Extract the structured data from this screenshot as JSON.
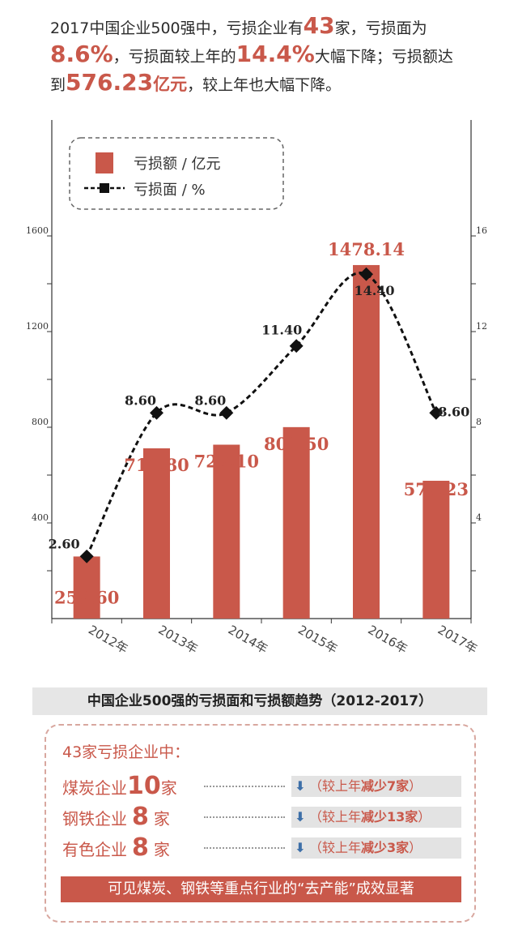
{
  "headline": {
    "l1a": "2017中国企业500强中，亏损企业有",
    "l1b": "43",
    "l1c": "家，亏损面为",
    "l2a": "8.6%",
    "l2b": "，亏损面较上年的",
    "l2c": "14.4%",
    "l2d": "大幅下降；亏损额达",
    "l3a": "到",
    "l3b": "576.23",
    "l3c": "亿元",
    "l3d": "，较上年也大幅下降。"
  },
  "chart_data": {
    "type": "bar+line",
    "categories": [
      "2012年",
      "2013年",
      "2014年",
      "2015年",
      "2016年",
      "2017年"
    ],
    "series": [
      {
        "name": "亏损额 / 亿元",
        "type": "bar",
        "values": [
          259.6,
          711.8,
          727.1,
          800.5,
          1478.14,
          576.23
        ],
        "labels": [
          "259.60",
          "711.80",
          "727.10",
          "800.50",
          "1478.14",
          "576.23"
        ]
      },
      {
        "name": "亏损面 / %",
        "type": "line",
        "values": [
          2.6,
          8.6,
          8.6,
          11.4,
          14.4,
          8.6
        ],
        "labels": [
          "2.60",
          "8.60",
          "8.60",
          "11.40",
          "14.40",
          "8.60"
        ]
      }
    ],
    "y_left": {
      "ticks": [
        "400",
        "800",
        "1200",
        "1600"
      ],
      "range": [
        0,
        1600
      ]
    },
    "y_right": {
      "ticks": [
        "4",
        "8",
        "12",
        "16"
      ],
      "range": [
        0,
        16
      ]
    },
    "legend": [
      "亏损额 / 亿元",
      "亏损面 / %"
    ],
    "legend_position": "top-left",
    "colors": {
      "bar": "#c9584a",
      "line": "#111111"
    }
  },
  "subtitle": "中国企业500强的亏损面和亏损额趋势（2012-2017）",
  "box": {
    "heading": "43家亏损企业中：",
    "rows": [
      {
        "name": "煤炭企业",
        "count": "10",
        "unit": "家",
        "arrow": "down-arrow-icon",
        "note_pre": "（较上年",
        "note_bold": "减少7家",
        "note_post": "）"
      },
      {
        "name": "钢铁企业",
        "count": "8",
        "unit": "家",
        "arrow": "down-arrow-icon",
        "note_pre": "（较上年",
        "note_bold": "减少13家",
        "note_post": "）"
      },
      {
        "name": "有色企业",
        "count": "8",
        "unit": "家",
        "arrow": "down-arrow-icon",
        "note_pre": "（较上年",
        "note_bold": "减少3家",
        "note_post": "）"
      }
    ],
    "banner": "可见煤炭、钢铁等重点行业的“去产能”成效显著"
  }
}
